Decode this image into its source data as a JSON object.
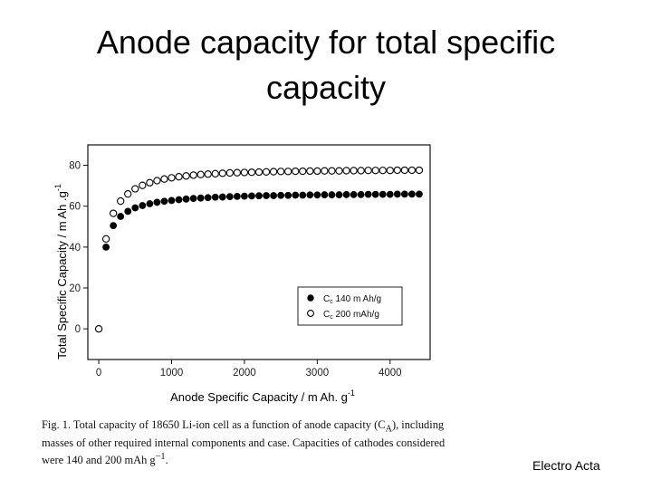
{
  "slide": {
    "title_line1": "Anode capacity for total specific",
    "title_line2": "capacity",
    "source": "Electro Acta"
  },
  "caption": {
    "fig_label": "Fig. 1.",
    "text": "Total capacity of 18650 Li-ion cell as a function of anode capacity (C",
    "subscript": "A",
    "text_after": "), including masses of other required internal components and case. Capacities of cathodes considered were 140 and 200 mAh g",
    "superscript": "−1",
    "ending": "."
  },
  "chart_data": {
    "type": "scatter",
    "xlabel": "Anode Specific Capacity / m Ah. g",
    "xlabel_sup": "-1",
    "ylabel": "Total Specific Capacity / m Ah .g",
    "ylabel_sup": "-1",
    "xlim": [
      -150,
      4550
    ],
    "ylim": [
      -15,
      90
    ],
    "xticks": [
      0,
      1000,
      2000,
      3000,
      4000
    ],
    "yticks": [
      0,
      20,
      40,
      60,
      80
    ],
    "legend_position": "lower-right",
    "series": [
      {
        "name": "Cc 140 m Ah/g",
        "name_main": "C",
        "name_sub": "c",
        "name_rest": " 140 m Ah/g",
        "marker": "filled-circle",
        "color": "#000000",
        "x": [
          100,
          200,
          300,
          400,
          500,
          600,
          700,
          800,
          900,
          1000,
          1100,
          1200,
          1300,
          1400,
          1500,
          1600,
          1700,
          1800,
          1900,
          2000,
          2100,
          2200,
          2300,
          2400,
          2500,
          2600,
          2700,
          2800,
          2900,
          3000,
          3100,
          3200,
          3300,
          3400,
          3500,
          3600,
          3700,
          3800,
          3900,
          4000,
          4100,
          4200,
          4300,
          4400
        ],
        "y": [
          40.0,
          50.5,
          55.0,
          57.5,
          59.2,
          60.3,
          61.2,
          61.9,
          62.4,
          62.8,
          63.2,
          63.5,
          63.8,
          64.0,
          64.2,
          64.4,
          64.5,
          64.7,
          64.8,
          64.9,
          65.0,
          65.1,
          65.2,
          65.2,
          65.3,
          65.3,
          65.4,
          65.4,
          65.5,
          65.5,
          65.6,
          65.6,
          65.6,
          65.7,
          65.7,
          65.7,
          65.8,
          65.8,
          65.8,
          65.8,
          65.9,
          65.9,
          65.9,
          65.9
        ]
      },
      {
        "name": "Cc 200 mAh/g",
        "name_main": "C",
        "name_sub": "c",
        "name_rest": " 200 mAh/g",
        "marker": "open-circle",
        "color": "#000000",
        "x": [
          0,
          100,
          200,
          300,
          400,
          500,
          600,
          700,
          800,
          900,
          1000,
          1100,
          1200,
          1300,
          1400,
          1500,
          1600,
          1700,
          1800,
          1900,
          2000,
          2100,
          2200,
          2300,
          2400,
          2500,
          2600,
          2700,
          2800,
          2900,
          3000,
          3100,
          3200,
          3300,
          3400,
          3500,
          3600,
          3700,
          3800,
          3900,
          4000,
          4100,
          4200,
          4300,
          4400
        ],
        "y": [
          0.0,
          44.0,
          56.5,
          62.5,
          66.0,
          68.5,
          70.2,
          71.5,
          72.5,
          73.3,
          73.9,
          74.4,
          74.8,
          75.2,
          75.5,
          75.7,
          75.9,
          76.1,
          76.3,
          76.4,
          76.5,
          76.6,
          76.7,
          76.8,
          76.9,
          77.0,
          77.0,
          77.1,
          77.1,
          77.2,
          77.2,
          77.3,
          77.3,
          77.3,
          77.4,
          77.4,
          77.4,
          77.5,
          77.5,
          77.5,
          77.5,
          77.6,
          77.6,
          77.6,
          77.6
        ]
      }
    ]
  }
}
